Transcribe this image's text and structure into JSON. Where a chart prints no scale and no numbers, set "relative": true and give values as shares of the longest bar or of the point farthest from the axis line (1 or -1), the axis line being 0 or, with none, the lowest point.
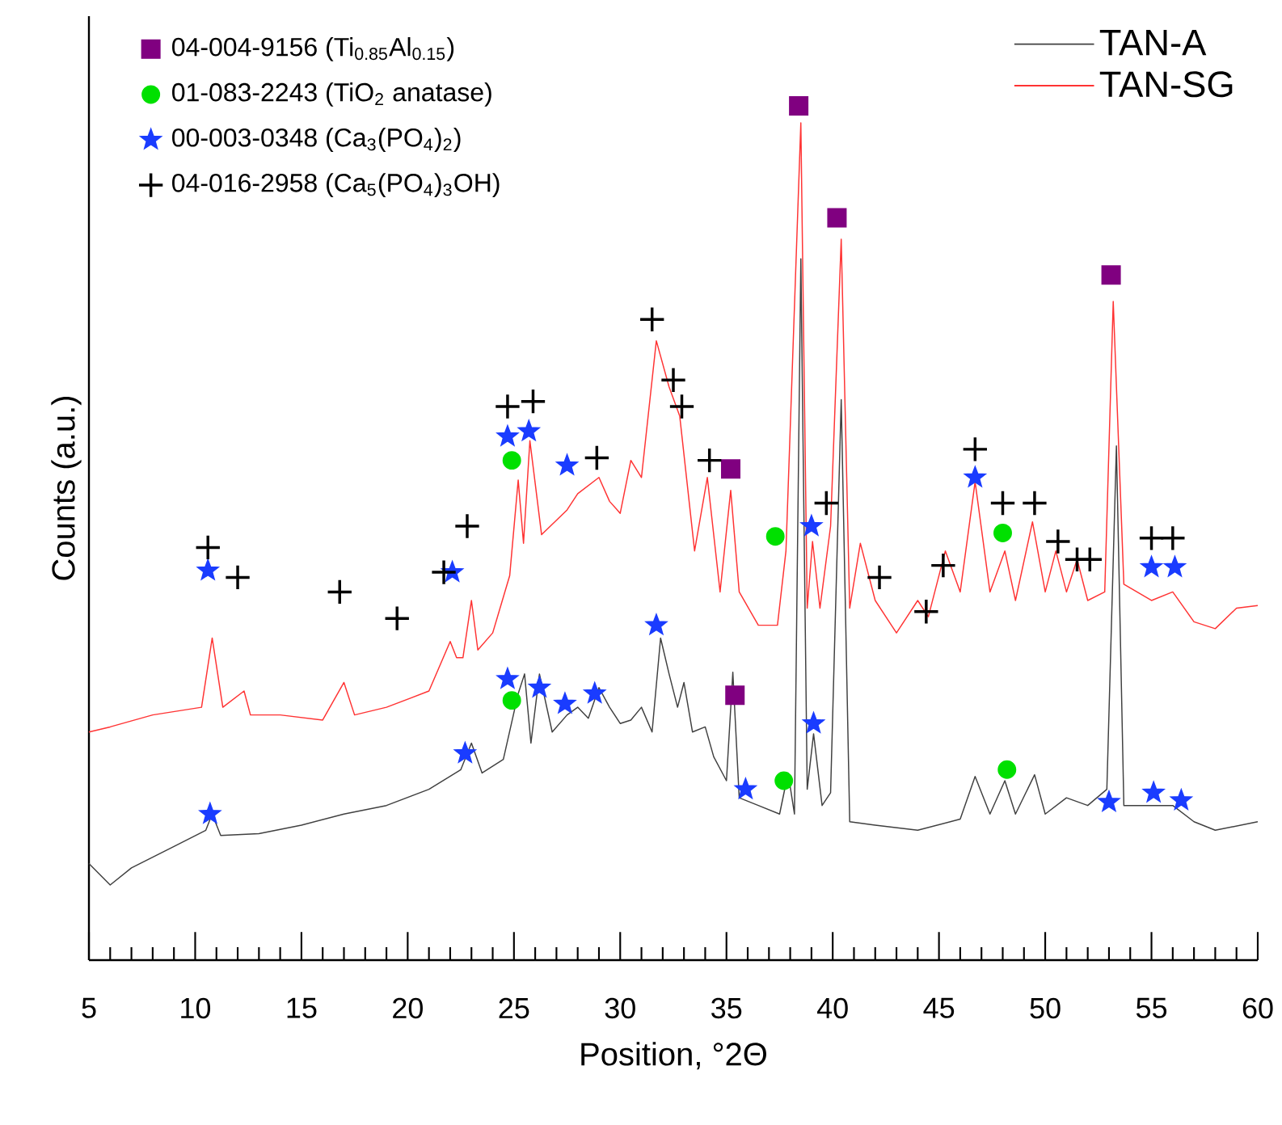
{
  "chart_data": {
    "type": "line",
    "xlabel": "Position, °2Θ",
    "ylabel": "Counts (a.u.)",
    "relative": true,
    "xlim": [
      5,
      60
    ],
    "xticks": [
      5,
      10,
      15,
      20,
      25,
      30,
      35,
      40,
      45,
      50,
      55,
      60
    ],
    "legend": "top right",
    "series": [
      {
        "name": "TAN-A",
        "marker": "none",
        "color": "#404040",
        "x": [
          5,
          6,
          7,
          9,
          10.5,
          10.8,
          11.2,
          13,
          15,
          17,
          19,
          21,
          22.5,
          23,
          23.5,
          24.5,
          25.2,
          25.5,
          25.8,
          26.2,
          26.8,
          27.5,
          28,
          28.5,
          29,
          29.5,
          30,
          30.5,
          31,
          31.5,
          31.9,
          32.3,
          32.7,
          33,
          33.4,
          34,
          34.4,
          35,
          35.3,
          35.6,
          36.5,
          37.5,
          37.9,
          38.2,
          38.5,
          38.8,
          39.1,
          39.5,
          39.9,
          40.4,
          40.8,
          42,
          44,
          46,
          46.7,
          47.4,
          48.1,
          48.6,
          49.5,
          50,
          51,
          52,
          52.9,
          53.35,
          53.7,
          55,
          56,
          57,
          58,
          60
        ],
        "values": [
          0.113,
          0.088,
          0.108,
          0.133,
          0.152,
          0.171,
          0.146,
          0.148,
          0.158,
          0.171,
          0.181,
          0.2,
          0.223,
          0.254,
          0.219,
          0.235,
          0.312,
          0.335,
          0.254,
          0.335,
          0.267,
          0.287,
          0.296,
          0.283,
          0.319,
          0.296,
          0.277,
          0.281,
          0.296,
          0.267,
          0.377,
          0.335,
          0.296,
          0.325,
          0.267,
          0.273,
          0.238,
          0.21,
          0.337,
          0.19,
          0.181,
          0.171,
          0.219,
          0.171,
          0.821,
          0.2,
          0.265,
          0.181,
          0.196,
          0.656,
          0.162,
          0.158,
          0.152,
          0.165,
          0.215,
          0.171,
          0.21,
          0.171,
          0.217,
          0.171,
          0.19,
          0.181,
          0.2,
          0.602,
          0.181,
          0.181,
          0.181,
          0.162,
          0.152,
          0.162
        ]
      },
      {
        "name": "TAN-SG",
        "marker": "none",
        "color": "#ff3333",
        "x": [
          5,
          6,
          8,
          10.3,
          10.8,
          11.3,
          12.3,
          12.6,
          14,
          16,
          17,
          17.5,
          19,
          21,
          22,
          22.3,
          22.6,
          23,
          23.3,
          24,
          24.8,
          25.2,
          25.45,
          25.75,
          26.3,
          27.5,
          28,
          29,
          29.5,
          30,
          30.5,
          31,
          31.7,
          32.3,
          32.8,
          33.5,
          34.1,
          34.7,
          35.2,
          35.6,
          36.5,
          37.4,
          37.8,
          38.5,
          38.8,
          39.05,
          39.4,
          39.9,
          40.4,
          40.8,
          41.3,
          42,
          43,
          44,
          44.5,
          45.3,
          46,
          46.7,
          47.4,
          48.1,
          48.6,
          49.4,
          50,
          50.5,
          51,
          51.5,
          52,
          52.8,
          53.2,
          53.7,
          55,
          56,
          57,
          58,
          59,
          60
        ],
        "values": [
          0.267,
          0.273,
          0.287,
          0.296,
          0.377,
          0.296,
          0.315,
          0.287,
          0.287,
          0.281,
          0.325,
          0.287,
          0.296,
          0.315,
          0.373,
          0.354,
          0.354,
          0.421,
          0.363,
          0.383,
          0.45,
          0.562,
          0.488,
          0.608,
          0.498,
          0.527,
          0.546,
          0.565,
          0.537,
          0.523,
          0.585,
          0.565,
          0.725,
          0.671,
          0.637,
          0.479,
          0.565,
          0.431,
          0.55,
          0.431,
          0.392,
          0.392,
          0.479,
          0.98,
          0.412,
          0.49,
          0.412,
          0.508,
          0.844,
          0.412,
          0.488,
          0.421,
          0.383,
          0.421,
          0.402,
          0.479,
          0.431,
          0.56,
          0.431,
          0.479,
          0.421,
          0.513,
          0.431,
          0.479,
          0.431,
          0.469,
          0.421,
          0.431,
          0.771,
          0.44,
          0.421,
          0.431,
          0.396,
          0.388,
          0.412,
          0.415
        ]
      },
      {
        "name": "04-004-9156 (Ti$_{0.85}$Al$_{0.15}$)",
        "type": "scatter",
        "marker": "square",
        "color": "#800080",
        "x": [
          38.4,
          40.2,
          53.1,
          35.2,
          35.4
        ],
        "values": [
          1.0,
          0.869,
          0.802,
          0.575,
          0.31
        ]
      },
      {
        "name": "01-083-2243 (TiO$_{2}$ anatase)",
        "type": "scatter",
        "marker": "circle",
        "color": "#00e000",
        "x": [
          24.9,
          37.3,
          48.0,
          24.9,
          37.7,
          48.2
        ],
        "values": [
          0.585,
          0.496,
          0.5,
          0.304,
          0.21,
          0.223
        ]
      },
      {
        "name": "00-003-0348 (Ca$_{3}$(PO$_{4}$)$_{2}$)",
        "type": "scatter",
        "marker": "star",
        "color": "#1a3cff",
        "x": [
          10.6,
          22.1,
          24.7,
          25.7,
          27.5,
          39.0,
          46.7,
          55.0,
          56.1,
          10.7,
          22.7,
          24.7,
          26.2,
          27.4,
          28.8,
          31.7,
          35.9,
          39.1,
          53.0,
          55.1,
          56.4
        ],
        "values": [
          0.456,
          0.454,
          0.613,
          0.619,
          0.579,
          0.508,
          0.565,
          0.46,
          0.46,
          0.171,
          0.242,
          0.329,
          0.319,
          0.3,
          0.312,
          0.392,
          0.2,
          0.277,
          0.185,
          0.196,
          0.187
        ]
      },
      {
        "name": "04-016-2958 (Ca$_{5}$(PO$_{4}$)$_{3}$OH)",
        "type": "scatter",
        "marker": "cross",
        "color": "#000000",
        "x": [
          10.6,
          12.0,
          16.8,
          19.5,
          21.7,
          22.8,
          24.7,
          25.9,
          28.9,
          31.5,
          32.5,
          32.9,
          34.2,
          39.7,
          42.2,
          44.4,
          45.2,
          46.7,
          48.0,
          49.5,
          50.6,
          51.5,
          52.1,
          55.0,
          56.0
        ],
        "values": [
          0.483,
          0.448,
          0.431,
          0.4,
          0.454,
          0.508,
          0.648,
          0.654,
          0.588,
          0.75,
          0.679,
          0.648,
          0.585,
          0.535,
          0.448,
          0.408,
          0.462,
          0.598,
          0.535,
          0.535,
          0.49,
          0.469,
          0.469,
          0.494,
          0.494
        ]
      }
    ]
  }
}
